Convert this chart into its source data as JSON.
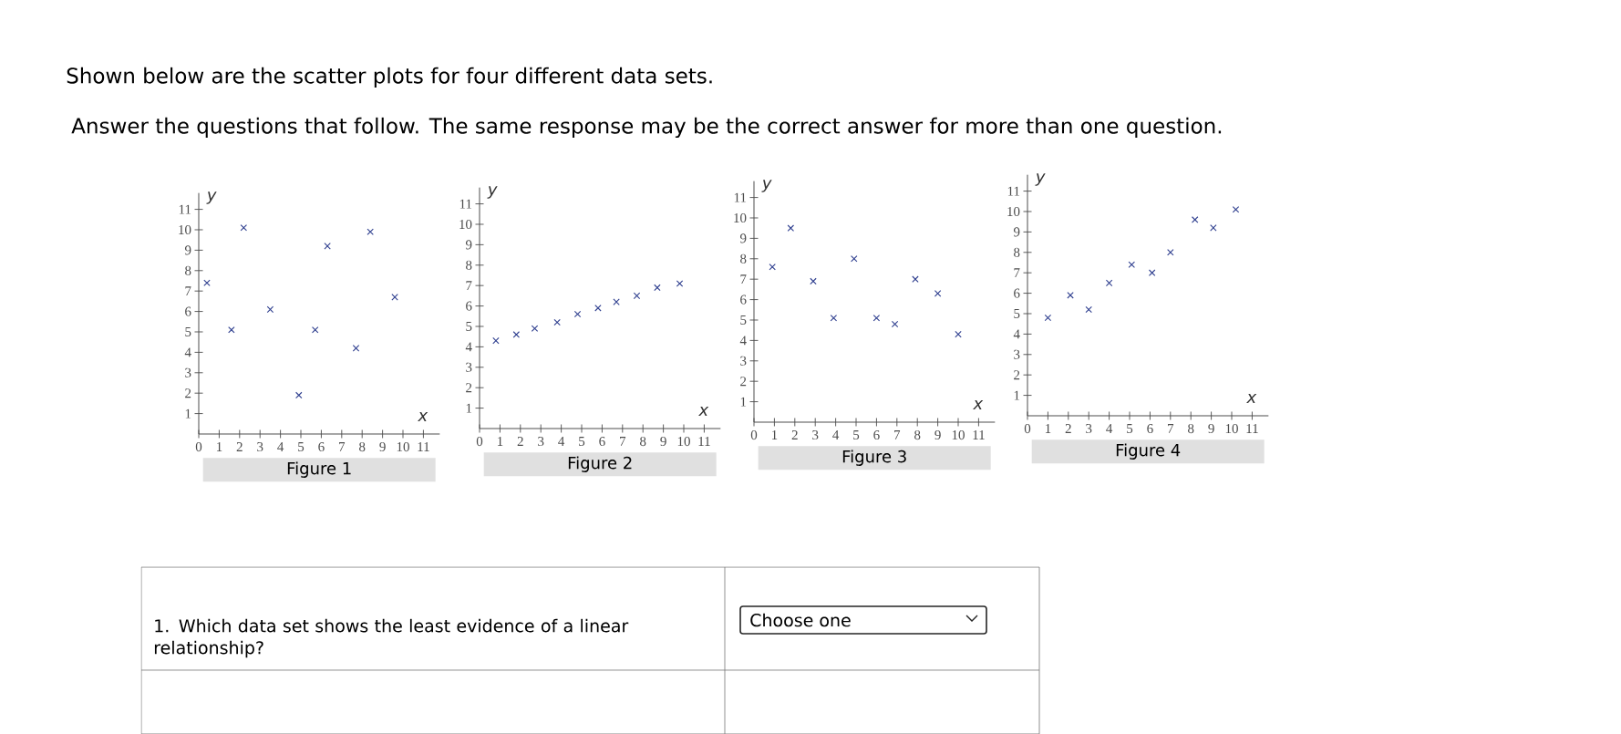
{
  "chart_data": [
    {
      "type": "other",
      "annotations": [
        "Shown below are the scatter plots for four different data sets.",
        "Answer the questions that follow. The same response may be the correct answer for more than one question."
      ]
    },
    {
      "type": "scatter",
      "title": "Figure 1",
      "xlabel": "x",
      "ylabel": "y",
      "color": "#2f3f8f",
      "marker": "cross",
      "x": [
        0.4,
        1.6,
        2.2,
        3.5,
        4.9,
        5.7,
        6.3,
        7.7,
        8.4,
        9.6
      ],
      "values": [
        7.4,
        5.1,
        10.1,
        6.1,
        1.9,
        5.1,
        9.2,
        4.2,
        9.9,
        6.7
      ],
      "xlim": [
        0,
        11.8
      ],
      "ylim": [
        0,
        11.8
      ],
      "xticks": [
        0,
        1,
        2,
        3,
        4,
        5,
        6,
        7,
        8,
        9,
        10,
        11
      ],
      "yticks": [
        1,
        2,
        3,
        4,
        5,
        6,
        7,
        8,
        9,
        10,
        11
      ]
    },
    {
      "type": "scatter",
      "title": "Figure 2",
      "xlabel": "x",
      "ylabel": "y",
      "color": "#2f3f8f",
      "marker": "cross",
      "x": [
        0.8,
        1.8,
        2.7,
        3.8,
        4.8,
        5.8,
        6.7,
        7.7,
        8.7,
        9.8
      ],
      "values": [
        4.3,
        4.6,
        4.9,
        5.2,
        5.6,
        5.9,
        6.2,
        6.5,
        6.9,
        7.1
      ],
      "xlim": [
        0,
        11.8
      ],
      "ylim": [
        0,
        11.8
      ],
      "xticks": [
        0,
        1,
        2,
        3,
        4,
        5,
        6,
        7,
        8,
        9,
        10,
        11
      ],
      "yticks": [
        1,
        2,
        3,
        4,
        5,
        6,
        7,
        8,
        9,
        10,
        11
      ]
    },
    {
      "type": "scatter",
      "title": "Figure 3",
      "xlabel": "x",
      "ylabel": "y",
      "color": "#2f3f8f",
      "marker": "cross",
      "x": [
        0.9,
        1.8,
        2.9,
        3.9,
        4.9,
        6.0,
        6.9,
        7.9,
        9.0,
        10.0
      ],
      "values": [
        7.6,
        9.5,
        6.9,
        5.1,
        8.0,
        5.1,
        4.8,
        7.0,
        6.3,
        4.3
      ],
      "xlim": [
        0,
        11.8
      ],
      "ylim": [
        0,
        11.8
      ],
      "xticks": [
        0,
        1,
        2,
        3,
        4,
        5,
        6,
        7,
        8,
        9,
        10,
        11
      ],
      "yticks": [
        1,
        2,
        3,
        4,
        5,
        6,
        7,
        8,
        9,
        10,
        11
      ]
    },
    {
      "type": "scatter",
      "title": "Figure 4",
      "xlabel": "x",
      "ylabel": "y",
      "color": "#2f3f8f",
      "marker": "cross",
      "x": [
        1.0,
        2.1,
        3.0,
        4.0,
        5.1,
        6.1,
        7.0,
        8.2,
        9.1,
        10.2
      ],
      "values": [
        4.8,
        5.9,
        5.2,
        6.5,
        7.4,
        7.0,
        8.0,
        9.6,
        9.2,
        10.1
      ],
      "xlim": [
        0,
        11.8
      ],
      "ylim": [
        0,
        11.8
      ],
      "xticks": [
        0,
        1,
        2,
        3,
        4,
        5,
        6,
        7,
        8,
        9,
        10,
        11
      ],
      "yticks": [
        1,
        2,
        3,
        4,
        5,
        6,
        7,
        8,
        9,
        10,
        11
      ]
    },
    {
      "type": "other",
      "annotations": [
        "1. Which data set shows the least evidence of a linear relationship?",
        "Choose one"
      ]
    }
  ]
}
